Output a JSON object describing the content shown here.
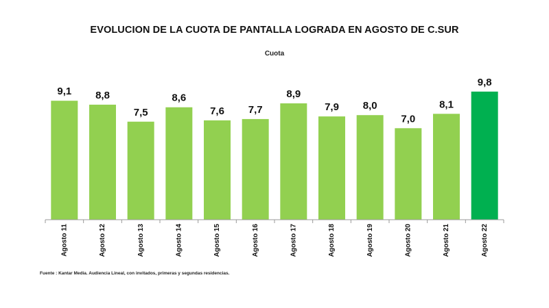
{
  "chart_data": {
    "type": "bar",
    "title": "EVOLUCION DE LA CUOTA DE PANTALLA LOGRADA EN AGOSTO DE C.SUR",
    "subtitle": "Cuota",
    "categories": [
      "Agosto 11",
      "Agosto 12",
      "Agosto 13",
      "Agosto 14",
      "Agosto 15",
      "Agosto 16",
      "Agosto 17",
      "Agosto 18",
      "Agosto 19",
      "Agosto 20",
      "Agosto 21",
      "Agosto 22"
    ],
    "values": [
      9.1,
      8.8,
      7.5,
      8.6,
      7.6,
      7.7,
      8.9,
      7.9,
      8.0,
      7.0,
      8.1,
      9.8
    ],
    "value_labels": [
      "9,1",
      "8,8",
      "7,5",
      "8,6",
      "7,6",
      "7,7",
      "8,9",
      "7,9",
      "8,0",
      "7,0",
      "8,1",
      "9,8"
    ],
    "xlabel": "",
    "ylabel": "",
    "ylim": [
      0,
      10
    ],
    "grid": false,
    "legend": "none",
    "colors": {
      "bar": "#92d050",
      "highlight": "#00b050",
      "highlight_index": 11
    }
  },
  "source": "Fuente : Kantar Media. Audiencia Lineal, con invitados, primeras y segundas residencias."
}
